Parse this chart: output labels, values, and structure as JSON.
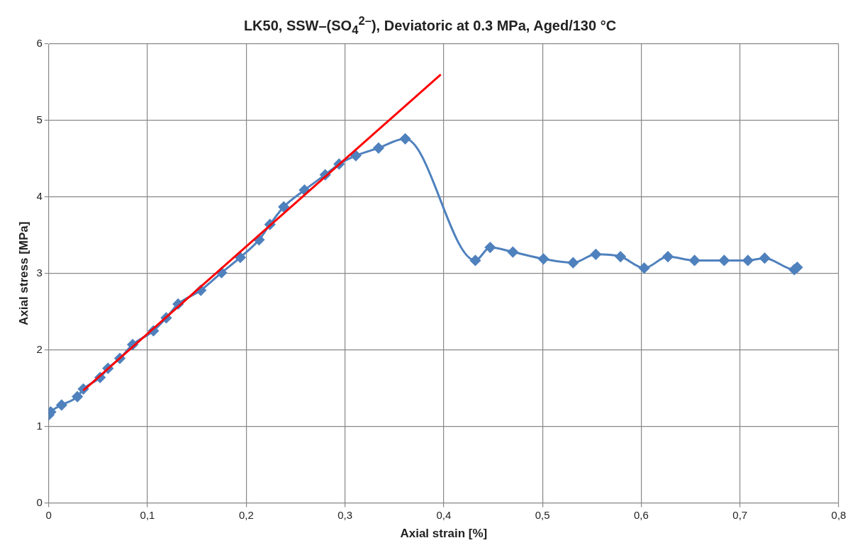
{
  "chart_data": {
    "type": "line",
    "title": "LK50, SSW–(SO$_{4}$$^{2–}$), Deviatoric at 0.3 MPa, Aged/130 °C",
    "xlabel": "Axial strain [%]",
    "ylabel": "Axial stress [MPa]",
    "xlim": [
      0,
      0.8
    ],
    "xticks": [
      0,
      {
        "value": 0.1,
        "label": "0,1"
      },
      {
        "value": 0.2,
        "label": "0,2"
      },
      {
        "value": 0.3,
        "label": "0,3"
      },
      {
        "value": 0.4,
        "label": "0,4"
      },
      {
        "value": 0.5,
        "label": "0,5"
      },
      {
        "value": 0.6,
        "label": "0,6"
      },
      {
        "value": 0.7,
        "label": "0,7"
      },
      {
        "value": 0.8,
        "label": "0,8"
      }
    ],
    "ylim": [
      0,
      6
    ],
    "yticks": [
      0,
      1,
      2,
      3,
      4,
      5,
      6
    ],
    "grid": true,
    "legend": false,
    "marker": "diamond",
    "series": [
      {
        "color": "#4f81bd",
        "x": [
          0,
          0.002,
          0.013,
          0.029,
          0.035,
          0.052,
          0.06,
          0.072,
          0.085,
          0.106,
          0.119,
          0.131,
          0.154,
          0.175,
          0.194,
          0.213,
          0.224,
          0.238,
          0.259,
          0.28,
          0.294,
          0.311,
          0.334,
          0.361,
          0.432,
          0.447,
          0.47,
          0.501,
          0.531,
          0.554,
          0.579,
          0.603,
          0.627,
          0.654,
          0.684,
          0.708,
          0.725,
          0.755,
          0.758
        ],
        "values": [
          1.15,
          1.19,
          1.28,
          1.39,
          1.49,
          1.64,
          1.76,
          1.89,
          2.07,
          2.25,
          2.42,
          2.6,
          2.78,
          3.01,
          3.21,
          3.44,
          3.64,
          3.87,
          4.09,
          4.29,
          4.43,
          4.54,
          4.64,
          4.76,
          3.17,
          3.34,
          3.28,
          3.19,
          3.14,
          3.25,
          3.22,
          3.07,
          3.22,
          3.17,
          3.17,
          3.17,
          3.2,
          3.05,
          3.08
        ]
      },
      {
        "type": "line",
        "color": "#ff0000",
        "marker": "none",
        "x": [
          0.035,
          0.397
        ],
        "values": [
          1.47,
          5.6
        ]
      }
    ]
  }
}
